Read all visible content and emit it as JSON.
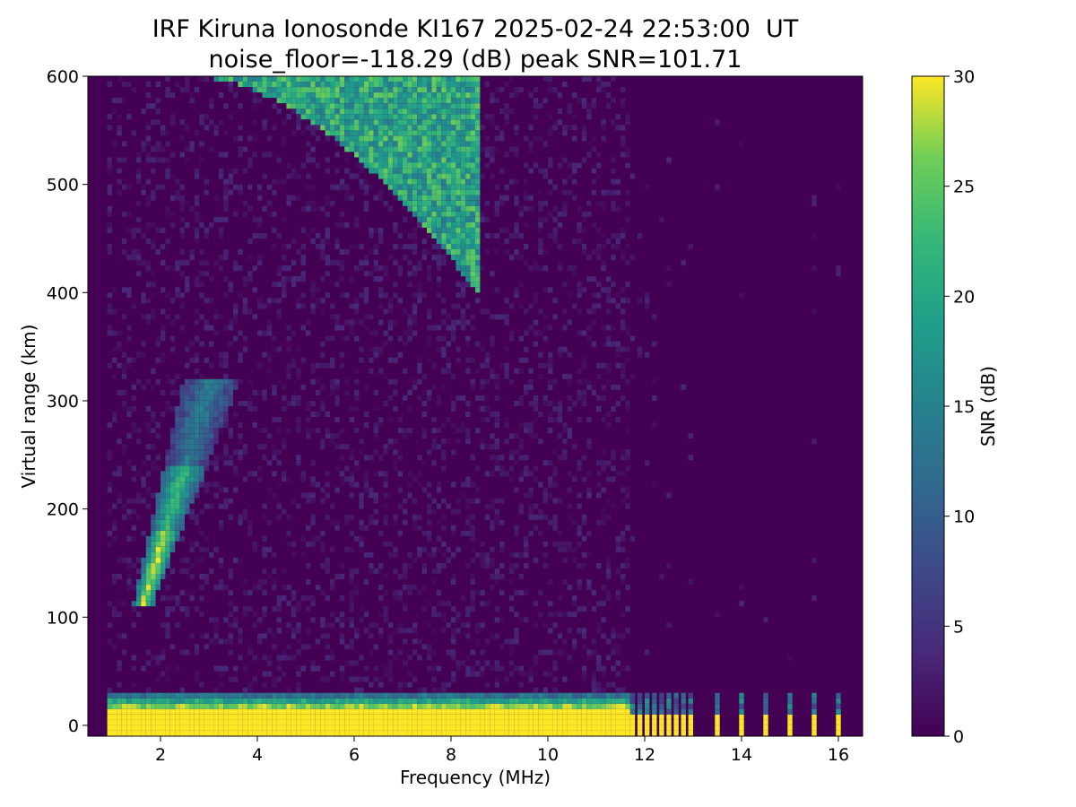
{
  "chart_data": {
    "type": "heatmap",
    "title": "IRF Kiruna Ionosonde KI167 2025-02-24 22:53:00  UT",
    "subtitle": "noise_floor=-118.29 (dB) peak SNR=101.71",
    "xlabel": "Frequency (MHz)",
    "ylabel": "Virtual range (km)",
    "xlim": [
      0.5,
      16.5
    ],
    "ylim": [
      -10,
      600
    ],
    "x_ticks": [
      "2",
      "4",
      "6",
      "8",
      "10",
      "12",
      "14",
      "16"
    ],
    "y_ticks": [
      "0",
      "100",
      "200",
      "300",
      "400",
      "500",
      "600"
    ],
    "colorbar": {
      "label": "SNR (dB)",
      "range": [
        0,
        30
      ],
      "ticks": [
        "0",
        "5",
        "10",
        "15",
        "20",
        "25",
        "30"
      ],
      "colormap": "viridis"
    },
    "frequency_coverage_mhz": [
      0.9,
      16.3
    ],
    "continuous_sweep_end_mhz": 11.6,
    "sparse_frequencies_mhz": [
      11.75,
      11.9,
      12.05,
      12.2,
      12.35,
      12.5,
      12.65,
      12.8,
      12.95,
      13.5,
      14.0,
      14.5,
      15.0,
      15.5,
      16.0
    ],
    "echo_regions": [
      {
        "feature": "ground / near-range band",
        "freq_mhz": [
          0.9,
          16.0
        ],
        "range_km": [
          -10,
          35
        ],
        "snr_db": 30
      },
      {
        "feature": "E/F1 trace",
        "freq_mhz": [
          1.5,
          3.6
        ],
        "range_km": [
          110,
          310
        ],
        "snr_db": 22
      },
      {
        "feature": "F2 trace",
        "freq_mhz": [
          2.5,
          8.6
        ],
        "range_km": [
          395,
          600
        ],
        "snr_db": 22
      }
    ],
    "grid": false
  }
}
